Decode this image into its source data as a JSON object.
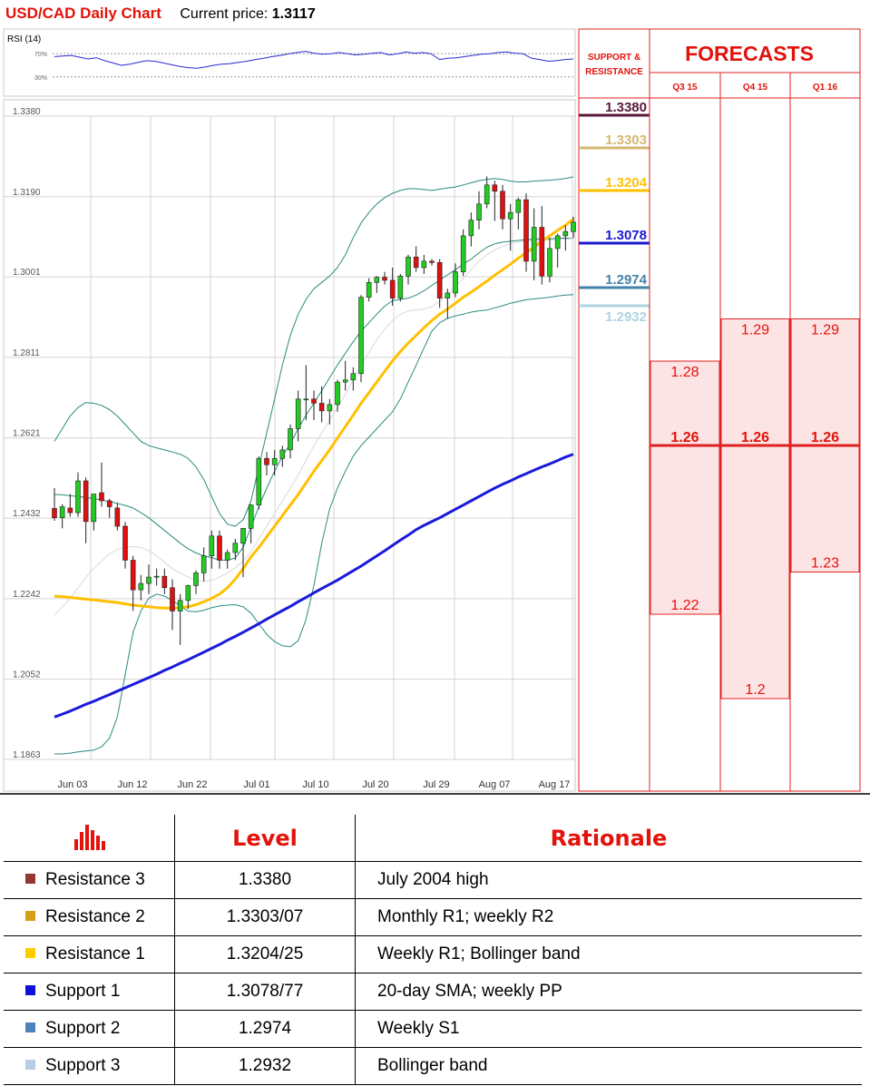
{
  "header": {
    "title": "USD/CAD Daily Chart",
    "price_label": "Current price:",
    "price_value": "1.3117"
  },
  "colors": {
    "accent_red": "#e3120b",
    "bull_candle": "#22cc22",
    "bear_candle": "#e01010",
    "sma_fast": "#ffc000",
    "sma_slow": "#1a1adc",
    "bollinger": "#2a8a80",
    "sma_20": "#d9d9d9",
    "rsi_line": "#2a2ad0"
  },
  "chart_data": [
    {
      "type": "line",
      "title": "RSI (14)",
      "y_ticks": [
        "70%",
        "30%"
      ],
      "ylim": [
        0,
        100
      ],
      "series": [
        {
          "values": [
            65,
            66,
            67,
            64,
            61,
            63,
            58,
            54,
            50,
            52,
            55,
            58,
            57,
            54,
            51,
            48,
            46,
            45,
            47,
            50,
            52,
            53,
            55,
            57,
            60,
            62,
            65,
            67,
            70,
            72,
            74,
            71,
            69,
            70,
            72,
            70,
            68,
            69,
            71,
            72,
            68,
            70,
            73,
            71,
            72,
            70,
            60,
            62,
            63,
            65,
            67,
            69,
            70,
            72,
            73,
            71,
            70,
            62,
            60,
            57,
            58,
            60,
            61
          ]
        }
      ]
    },
    {
      "type": "candlestick",
      "y_ticks": [
        "1.3380",
        "1.3190",
        "1.3001",
        "1.2811",
        "1.2621",
        "1.2432",
        "1.2242",
        "1.2052",
        "1.1863"
      ],
      "ylim": [
        1.1863,
        1.338
      ],
      "x_ticks": [
        "Jun 03",
        "Jun 12",
        "Jun 22",
        "Jul 01",
        "Jul 10",
        "Jul 20",
        "Jul 29",
        "Aug 07",
        "Aug 17"
      ],
      "grid": true,
      "candles": [
        [
          1.2442,
          1.249,
          1.2413,
          1.242
        ],
        [
          1.242,
          1.2452,
          1.2395,
          1.2446
        ],
        [
          1.2443,
          1.2476,
          1.2422,
          1.2432
        ],
        [
          1.2432,
          1.2527,
          1.2422,
          1.2507
        ],
        [
          1.2507,
          1.2515,
          1.236,
          1.2411
        ],
        [
          1.2411,
          1.2476,
          1.239,
          1.2476
        ],
        [
          1.2479,
          1.255,
          1.2446,
          1.246
        ],
        [
          1.246,
          1.2465,
          1.242,
          1.2446
        ],
        [
          1.2443,
          1.2455,
          1.239,
          1.24
        ],
        [
          1.24,
          1.241,
          1.23,
          1.232
        ],
        [
          1.232,
          1.233,
          1.22,
          1.225
        ],
        [
          1.225,
          1.2285,
          1.2225,
          1.2265
        ],
        [
          1.2265,
          1.231,
          1.224,
          1.228
        ],
        [
          1.228,
          1.23,
          1.226,
          1.2282
        ],
        [
          1.2282,
          1.23,
          1.224,
          1.2255
        ],
        [
          1.2255,
          1.2275,
          1.2155,
          1.22
        ],
        [
          1.22,
          1.224,
          1.212,
          1.2225
        ],
        [
          1.2225,
          1.2262,
          1.2205,
          1.226
        ],
        [
          1.226,
          1.2296,
          1.224,
          1.229
        ],
        [
          1.229,
          1.235,
          1.227,
          1.233
        ],
        [
          1.233,
          1.239,
          1.23,
          1.2377
        ],
        [
          1.2377,
          1.239,
          1.23,
          1.232
        ],
        [
          1.232,
          1.2345,
          1.23,
          1.2338
        ],
        [
          1.2338,
          1.237,
          1.232,
          1.236
        ],
        [
          1.236,
          1.2395,
          1.228,
          1.2395
        ],
        [
          1.2395,
          1.2452,
          1.236,
          1.245
        ],
        [
          1.245,
          1.2565,
          1.244,
          1.256
        ],
        [
          1.256,
          1.2575,
          1.252,
          1.2545
        ],
        [
          1.2545,
          1.258,
          1.252,
          1.256
        ],
        [
          1.256,
          1.259,
          1.254,
          1.258
        ],
        [
          1.258,
          1.264,
          1.256,
          1.263
        ],
        [
          1.263,
          1.272,
          1.26,
          1.27
        ],
        [
          1.27,
          1.278,
          1.265,
          1.27
        ],
        [
          1.27,
          1.272,
          1.265,
          1.269
        ],
        [
          1.269,
          1.273,
          1.2645,
          1.2672
        ],
        [
          1.2672,
          1.27,
          1.264,
          1.2687
        ],
        [
          1.2687,
          1.2745,
          1.267,
          1.274
        ],
        [
          1.274,
          1.279,
          1.272,
          1.2745
        ],
        [
          1.2745,
          1.2775,
          1.272,
          1.276
        ],
        [
          1.276,
          1.2945,
          1.274,
          1.294
        ],
        [
          1.294,
          1.2985,
          1.293,
          1.2975
        ],
        [
          1.2975,
          1.299,
          1.295,
          1.2987
        ],
        [
          1.2987,
          1.3,
          1.297,
          1.298
        ],
        [
          1.298,
          1.301,
          1.292,
          1.2938
        ],
        [
          1.2938,
          1.2995,
          1.293,
          1.299
        ],
        [
          1.299,
          1.304,
          1.297,
          1.3035
        ],
        [
          1.3035,
          1.306,
          1.3,
          1.301
        ],
        [
          1.301,
          1.304,
          1.2995,
          1.3025
        ],
        [
          1.3025,
          1.303,
          1.3015,
          1.3022
        ],
        [
          1.3022,
          1.303,
          1.2915,
          1.2938
        ],
        [
          1.2938,
          1.296,
          1.289,
          1.295
        ],
        [
          1.295,
          1.302,
          1.294,
          1.3
        ],
        [
          1.3,
          1.31,
          1.299,
          1.3085
        ],
        [
          1.3085,
          1.314,
          1.306,
          1.3122
        ],
        [
          1.3122,
          1.319,
          1.31,
          1.316
        ],
        [
          1.316,
          1.3225,
          1.315,
          1.3205
        ],
        [
          1.3205,
          1.3215,
          1.312,
          1.319
        ],
        [
          1.319,
          1.3205,
          1.31,
          1.3125
        ],
        [
          1.3125,
          1.316,
          1.305,
          1.314
        ],
        [
          1.314,
          1.3175,
          1.31,
          1.317
        ],
        [
          1.317,
          1.3185,
          1.3,
          1.3025
        ],
        [
          1.3025,
          1.315,
          1.298,
          1.3105
        ],
        [
          1.3105,
          1.3155,
          1.297,
          1.299
        ],
        [
          1.299,
          1.308,
          1.2975,
          1.3055
        ],
        [
          1.3055,
          1.309,
          1.301,
          1.3085
        ],
        [
          1.3085,
          1.311,
          1.305,
          1.3095
        ],
        [
          1.3095,
          1.313,
          1.308,
          1.3117
        ]
      ],
      "series": [
        {
          "values": [
            1.2475,
            1.2474,
            1.2472,
            1.247,
            1.2468,
            1.2465,
            1.2462,
            1.2458,
            1.2454,
            1.2449,
            1.2443,
            1.2432,
            1.242,
            1.2405,
            1.239,
            1.2375,
            1.236,
            1.2347,
            1.2337,
            1.233,
            1.2326,
            1.232,
            1.232,
            1.2325,
            1.235,
            1.2398,
            1.2446,
            1.249,
            1.253,
            1.2565,
            1.2595,
            1.263,
            1.2662,
            1.269,
            1.272,
            1.275,
            1.278,
            1.2808,
            1.2835,
            1.286,
            1.288,
            1.29,
            1.2919,
            1.2932,
            1.2935,
            1.2938,
            1.2945,
            1.2955,
            1.2968,
            1.298,
            1.2993,
            1.3005,
            1.3018,
            1.303,
            1.3045,
            1.3058,
            1.3066,
            1.307,
            1.3072,
            1.3074,
            1.3076,
            1.3077,
            1.3078,
            1.3078,
            1.3079,
            1.308,
            1.3078
          ]
        },
        {
          "values": [
            1.26,
            1.263,
            1.266,
            1.268,
            1.2692,
            1.269,
            1.2685,
            1.2675,
            1.266,
            1.264,
            1.262,
            1.26,
            1.259,
            1.2585,
            1.258,
            1.2575,
            1.257,
            1.256,
            1.254,
            1.251,
            1.247,
            1.243,
            1.2405,
            1.24,
            1.2415,
            1.246,
            1.254,
            1.262,
            1.27,
            1.278,
            1.285,
            1.29,
            1.2935,
            1.296,
            1.2975,
            1.299,
            1.301,
            1.304,
            1.308,
            1.3115,
            1.314,
            1.316,
            1.3175,
            1.3185,
            1.3192,
            1.3196,
            1.3196,
            1.3194,
            1.3192,
            1.3195,
            1.3198,
            1.32,
            1.3205,
            1.321,
            1.3215,
            1.3218,
            1.322,
            1.3218,
            1.3214,
            1.3212,
            1.3212,
            1.3214,
            1.3215,
            1.3216,
            1.3218,
            1.322,
            1.3224
          ]
        },
        {
          "values": [
            1.1863,
            1.1863,
            1.1865,
            1.1868,
            1.187,
            1.1872,
            1.188,
            1.19,
            1.195,
            1.205,
            1.215,
            1.22,
            1.223,
            1.224,
            1.2235,
            1.2225,
            1.2212,
            1.22,
            1.2198,
            1.2202,
            1.2208,
            1.2212,
            1.2214,
            1.2215,
            1.221,
            1.2195,
            1.217,
            1.2145,
            1.2128,
            1.2118,
            1.2116,
            1.213,
            1.218,
            1.226,
            1.236,
            1.244,
            1.249,
            1.253,
            1.2565,
            1.259,
            1.261,
            1.263,
            1.265,
            1.267,
            1.27,
            1.274,
            1.278,
            1.282,
            1.286,
            1.288,
            1.289,
            1.2896,
            1.29,
            1.2905,
            1.2908,
            1.291,
            1.2915,
            1.292,
            1.2926,
            1.293,
            1.2934,
            1.2936,
            1.2938,
            1.294,
            1.2943,
            1.2945,
            1.2946
          ]
        },
        {
          "values": [
            1.219,
            1.221,
            1.223,
            1.2255,
            1.228,
            1.23,
            1.2318,
            1.2335,
            1.2345,
            1.235,
            1.2352,
            1.235,
            1.2342,
            1.233,
            1.2315,
            1.23,
            1.229,
            1.228,
            1.2272,
            1.227,
            1.2272,
            1.228,
            1.229,
            1.2302,
            1.2318,
            1.234,
            1.237,
            1.24,
            1.243,
            1.246,
            1.249,
            1.252,
            1.2555,
            1.259,
            1.262,
            1.265,
            1.268,
            1.2712,
            1.2745,
            1.278,
            1.281,
            1.284,
            1.2865,
            1.2885,
            1.29,
            1.2908,
            1.291,
            1.2912,
            1.2918,
            1.293,
            1.2945,
            1.2965,
            1.2985,
            1.3005,
            1.3025,
            1.304,
            1.3052,
            1.306,
            1.3066,
            1.307,
            1.3072,
            1.3073,
            1.3074,
            1.3075,
            1.3076,
            1.3077,
            1.3078
          ]
        },
        {
          "values": [
            1.2235,
            1.2234,
            1.2232,
            1.223,
            1.2228,
            1.2226,
            1.2224,
            1.2222,
            1.222,
            1.2217,
            1.2214,
            1.2212,
            1.221,
            1.2208,
            1.2207,
            1.2207,
            1.2208,
            1.221,
            1.2215,
            1.2222,
            1.223,
            1.224,
            1.2255,
            1.2275,
            1.23,
            1.2328,
            1.235,
            1.2375,
            1.24,
            1.2425,
            1.245,
            1.2475,
            1.2502,
            1.253,
            1.2555,
            1.258,
            1.2608,
            1.2635,
            1.2662,
            1.269,
            1.2715,
            1.274,
            1.2765,
            1.279,
            1.2812,
            1.2832,
            1.285,
            1.2868,
            1.2885,
            1.29,
            1.2912,
            1.2926,
            1.294,
            1.2952,
            1.2965,
            1.2978,
            1.2992,
            1.3005,
            1.3018,
            1.3032,
            1.3045,
            1.3058,
            1.3072,
            1.3085,
            1.3098,
            1.311,
            1.3124
          ]
        },
        {
          "values": [
            1.195,
            1.1957,
            1.1964,
            1.1972,
            1.198,
            1.1987,
            1.1995,
            1.2003,
            1.2011,
            1.2019,
            1.2027,
            1.2035,
            1.2043,
            1.2051,
            1.206,
            1.2068,
            1.2077,
            1.2085,
            1.2094,
            1.2103,
            1.2112,
            1.2121,
            1.2131,
            1.214,
            1.215,
            1.216,
            1.217,
            1.2181,
            1.2191,
            1.2201,
            1.2211,
            1.2222,
            1.2232,
            1.2243,
            1.2253,
            1.2263,
            1.2273,
            1.2284,
            1.2295,
            1.2306,
            1.2318,
            1.233,
            1.2342,
            1.2355,
            1.2367,
            1.2379,
            1.2392,
            1.2402,
            1.2411,
            1.242,
            1.243,
            1.244,
            1.245,
            1.246,
            1.247,
            1.248,
            1.249,
            1.2499,
            1.2507,
            1.2516,
            1.2524,
            1.2532,
            1.254,
            1.2547,
            1.2555,
            1.2563,
            1.257
          ]
        }
      ]
    },
    {
      "type": "table",
      "title": "SUPPORT & RESISTANCE",
      "levels": [
        {
          "label": "1.3380",
          "value": 1.338,
          "color": "#5a1a3a"
        },
        {
          "label": "1.3303",
          "value": 1.3303,
          "color": "#d4b870"
        },
        {
          "label": "1.3204",
          "value": 1.3204,
          "color": "#ffc000"
        },
        {
          "label": "1.3078",
          "value": 1.3078,
          "color": "#1a1ad0"
        },
        {
          "label": "1.2974",
          "value": 1.2974,
          "color": "#4682a8"
        },
        {
          "label": "1.2932",
          "value": 1.2932,
          "color": "#aed4e0"
        }
      ]
    },
    {
      "type": "bar",
      "title": "FORECASTS",
      "categories": [
        "Q3 15",
        "Q4 15",
        "Q1 16"
      ],
      "series": [
        {
          "values": [
            1.28,
            1.29,
            1.29
          ]
        },
        {
          "values": [
            1.26,
            1.26,
            1.26
          ]
        },
        {
          "values": [
            1.22,
            1.2,
            1.23
          ]
        }
      ]
    }
  ],
  "table": {
    "headers": [
      "Level",
      "Rationale"
    ],
    "rows": [
      {
        "name": "Resistance 3",
        "level": "1.3380",
        "rationale": "July 2004 high",
        "color": "#943634"
      },
      {
        "name": "Resistance 2",
        "level": "1.3303/07",
        "rationale": "Monthly R1; weekly R2",
        "color": "#d4a017"
      },
      {
        "name": "Resistance 1",
        "level": "1.3204/25",
        "rationale": "Weekly R1; Bollinger band",
        "color": "#ffcc00"
      },
      {
        "name": "Support 1",
        "level": "1.3078/77",
        "rationale": "20-day SMA; weekly PP",
        "color": "#1010d8"
      },
      {
        "name": "Support 2",
        "level": "1.2974",
        "rationale": "Weekly S1",
        "color": "#4f81bd"
      },
      {
        "name": "Support 3",
        "level": "1.2932",
        "rationale": "Bollinger band",
        "color": "#b8cce4"
      }
    ]
  }
}
